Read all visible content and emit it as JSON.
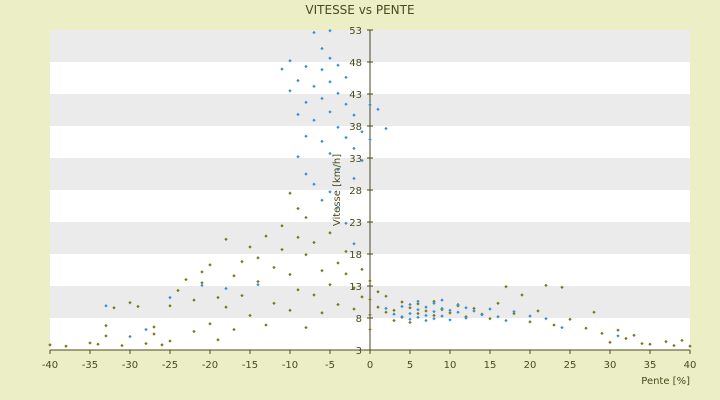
{
  "chart_data": {
    "type": "scatter",
    "title": "VITESSE vs PENTE",
    "xlabel": "Pente [%]",
    "ylabel": "Vitesse [km/h]",
    "xlim": [
      -40,
      40
    ],
    "ylim": [
      3,
      53
    ],
    "x_ticks": [
      -40,
      -35,
      -30,
      -25,
      -20,
      -15,
      -10,
      -5,
      0,
      5,
      10,
      15,
      20,
      25,
      30,
      35,
      40
    ],
    "y_ticks": [
      3,
      8,
      13,
      18,
      23,
      28,
      33,
      38,
      43,
      48,
      53
    ],
    "grid": "horizontal-bands",
    "legend": "none",
    "colors": {
      "series_a": "#7a7a1a",
      "series_b": "#3a8fd6",
      "band": "#ebebeb",
      "plot": "#ffffff",
      "background": "#ecefc6",
      "axis": "#4a4a1c"
    },
    "series": [
      {
        "color": "#7a7a1a",
        "points": [
          [
            -40,
            3.8
          ],
          [
            -38,
            3.6
          ],
          [
            -35,
            4.1
          ],
          [
            -34,
            3.9
          ],
          [
            -33,
            5.2
          ],
          [
            -33,
            6.8
          ],
          [
            -32,
            9.6
          ],
          [
            -31,
            3.7
          ],
          [
            -30,
            10.4
          ],
          [
            -29,
            9.8
          ],
          [
            -28,
            4.0
          ],
          [
            -27,
            5.5
          ],
          [
            -27,
            6.6
          ],
          [
            -26,
            3.8
          ],
          [
            -25,
            9.9
          ],
          [
            -25,
            4.4
          ],
          [
            -24,
            12.3
          ],
          [
            -23,
            14.0
          ],
          [
            -22,
            5.9
          ],
          [
            -22,
            10.8
          ],
          [
            -21,
            13.5
          ],
          [
            -21,
            15.2
          ],
          [
            -20,
            16.3
          ],
          [
            -20,
            7.1
          ],
          [
            -19,
            11.2
          ],
          [
            -19,
            4.6
          ],
          [
            -18,
            20.3
          ],
          [
            -18,
            9.7
          ],
          [
            -17,
            14.6
          ],
          [
            -17,
            6.2
          ],
          [
            -16,
            16.8
          ],
          [
            -16,
            11.5
          ],
          [
            -15,
            19.1
          ],
          [
            -15,
            8.4
          ],
          [
            -14,
            13.7
          ],
          [
            -14,
            17.4
          ],
          [
            -13,
            20.8
          ],
          [
            -13,
            6.9
          ],
          [
            -12,
            15.9
          ],
          [
            -12,
            10.3
          ],
          [
            -11,
            22.4
          ],
          [
            -11,
            18.7
          ],
          [
            -10,
            27.5
          ],
          [
            -10,
            14.8
          ],
          [
            -10,
            9.2
          ],
          [
            -9,
            25.1
          ],
          [
            -9,
            20.6
          ],
          [
            -9,
            12.4
          ],
          [
            -8,
            23.7
          ],
          [
            -8,
            17.9
          ],
          [
            -8,
            6.5
          ],
          [
            -7,
            19.8
          ],
          [
            -7,
            11.6
          ],
          [
            -6,
            15.4
          ],
          [
            -6,
            8.8
          ],
          [
            -5,
            13.2
          ],
          [
            -5,
            21.3
          ],
          [
            -4,
            16.6
          ],
          [
            -4,
            10.1
          ],
          [
            -3,
            14.9
          ],
          [
            -3,
            18.4
          ],
          [
            -2,
            12.7
          ],
          [
            -2,
            9.4
          ],
          [
            -1,
            11.3
          ],
          [
            -1,
            15.6
          ],
          [
            0,
            8.5
          ],
          [
            0,
            10.9
          ],
          [
            0,
            13.8
          ],
          [
            0,
            6.2
          ],
          [
            1,
            9.7
          ],
          [
            1,
            12.1
          ],
          [
            2,
            8.9
          ],
          [
            2,
            11.4
          ],
          [
            3,
            9.2
          ],
          [
            3,
            7.6
          ],
          [
            4,
            10.5
          ],
          [
            4,
            8.1
          ],
          [
            5,
            9.6
          ],
          [
            5,
            7.3
          ],
          [
            6,
            10.2
          ],
          [
            6,
            8.7
          ],
          [
            7,
            9.1
          ],
          [
            8,
            8.4
          ],
          [
            8,
            10.6
          ],
          [
            9,
            9.3
          ],
          [
            10,
            8.8
          ],
          [
            11,
            9.9
          ],
          [
            12,
            8.2
          ],
          [
            13,
            9.5
          ],
          [
            14,
            8.6
          ],
          [
            15,
            7.9
          ],
          [
            16,
            10.3
          ],
          [
            17,
            12.9
          ],
          [
            18,
            8.7
          ],
          [
            19,
            11.6
          ],
          [
            20,
            7.4
          ],
          [
            21,
            9.1
          ],
          [
            22,
            13.1
          ],
          [
            23,
            6.9
          ],
          [
            24,
            12.8
          ],
          [
            25,
            7.8
          ],
          [
            27,
            6.4
          ],
          [
            28,
            8.9
          ],
          [
            29,
            5.6
          ],
          [
            30,
            4.2
          ],
          [
            31,
            6.1
          ],
          [
            32,
            4.8
          ],
          [
            33,
            5.3
          ],
          [
            34,
            4.0
          ],
          [
            35,
            3.9
          ],
          [
            37,
            4.3
          ],
          [
            38,
            3.7
          ],
          [
            39,
            4.5
          ],
          [
            40,
            3.6
          ]
        ]
      },
      {
        "color": "#3a8fd6",
        "points": [
          [
            -11,
            46.9
          ],
          [
            -10,
            48.2
          ],
          [
            -10,
            43.5
          ],
          [
            -9,
            39.8
          ],
          [
            -9,
            45.1
          ],
          [
            -8,
            36.4
          ],
          [
            -8,
            41.7
          ],
          [
            -8,
            47.3
          ],
          [
            -7,
            52.6
          ],
          [
            -7,
            44.2
          ],
          [
            -7,
            38.9
          ],
          [
            -6,
            50.1
          ],
          [
            -6,
            46.8
          ],
          [
            -6,
            42.3
          ],
          [
            -6,
            35.6
          ],
          [
            -5,
            52.9
          ],
          [
            -5,
            48.6
          ],
          [
            -5,
            44.9
          ],
          [
            -5,
            40.2
          ],
          [
            -5,
            33.7
          ],
          [
            -4,
            47.5
          ],
          [
            -4,
            43.1
          ],
          [
            -4,
            37.8
          ],
          [
            -4,
            31.2
          ],
          [
            -3,
            45.6
          ],
          [
            -3,
            41.4
          ],
          [
            -3,
            36.2
          ],
          [
            -2,
            39.7
          ],
          [
            -2,
            34.5
          ],
          [
            -2,
            29.8
          ],
          [
            -1,
            37.1
          ],
          [
            -1,
            32.6
          ],
          [
            0,
            41.3
          ],
          [
            0,
            35.9
          ],
          [
            1,
            40.6
          ],
          [
            2,
            37.6
          ],
          [
            -9,
            33.2
          ],
          [
            -8,
            30.5
          ],
          [
            -7,
            28.9
          ],
          [
            -6,
            26.4
          ],
          [
            -5,
            27.7
          ],
          [
            -4,
            25.3
          ],
          [
            -3,
            22.8
          ],
          [
            -2,
            19.6
          ],
          [
            -14,
            13.2
          ],
          [
            -18,
            12.6
          ],
          [
            -21,
            13.1
          ],
          [
            -25,
            11.2
          ],
          [
            -30,
            5.1
          ],
          [
            -33,
            9.9
          ],
          [
            -28,
            6.2
          ],
          [
            2,
            9.5
          ],
          [
            3,
            8.6
          ],
          [
            4,
            9.8
          ],
          [
            4,
            8.2
          ],
          [
            5,
            10.1
          ],
          [
            5,
            8.7
          ],
          [
            5,
            7.8
          ],
          [
            6,
            9.3
          ],
          [
            6,
            10.6
          ],
          [
            6,
            8.1
          ],
          [
            7,
            9.7
          ],
          [
            7,
            8.4
          ],
          [
            7,
            7.6
          ],
          [
            8,
            10.3
          ],
          [
            8,
            9.0
          ],
          [
            8,
            7.9
          ],
          [
            9,
            9.5
          ],
          [
            9,
            8.3
          ],
          [
            9,
            10.8
          ],
          [
            10,
            9.2
          ],
          [
            10,
            7.7
          ],
          [
            11,
            8.9
          ],
          [
            11,
            10.1
          ],
          [
            12,
            9.6
          ],
          [
            12,
            8.0
          ],
          [
            13,
            9.1
          ],
          [
            14,
            8.5
          ],
          [
            15,
            9.4
          ],
          [
            16,
            8.2
          ],
          [
            17,
            7.6
          ],
          [
            18,
            9.0
          ],
          [
            20,
            8.3
          ],
          [
            22,
            7.9
          ],
          [
            24,
            6.5
          ],
          [
            31,
            5.2
          ]
        ]
      }
    ]
  }
}
